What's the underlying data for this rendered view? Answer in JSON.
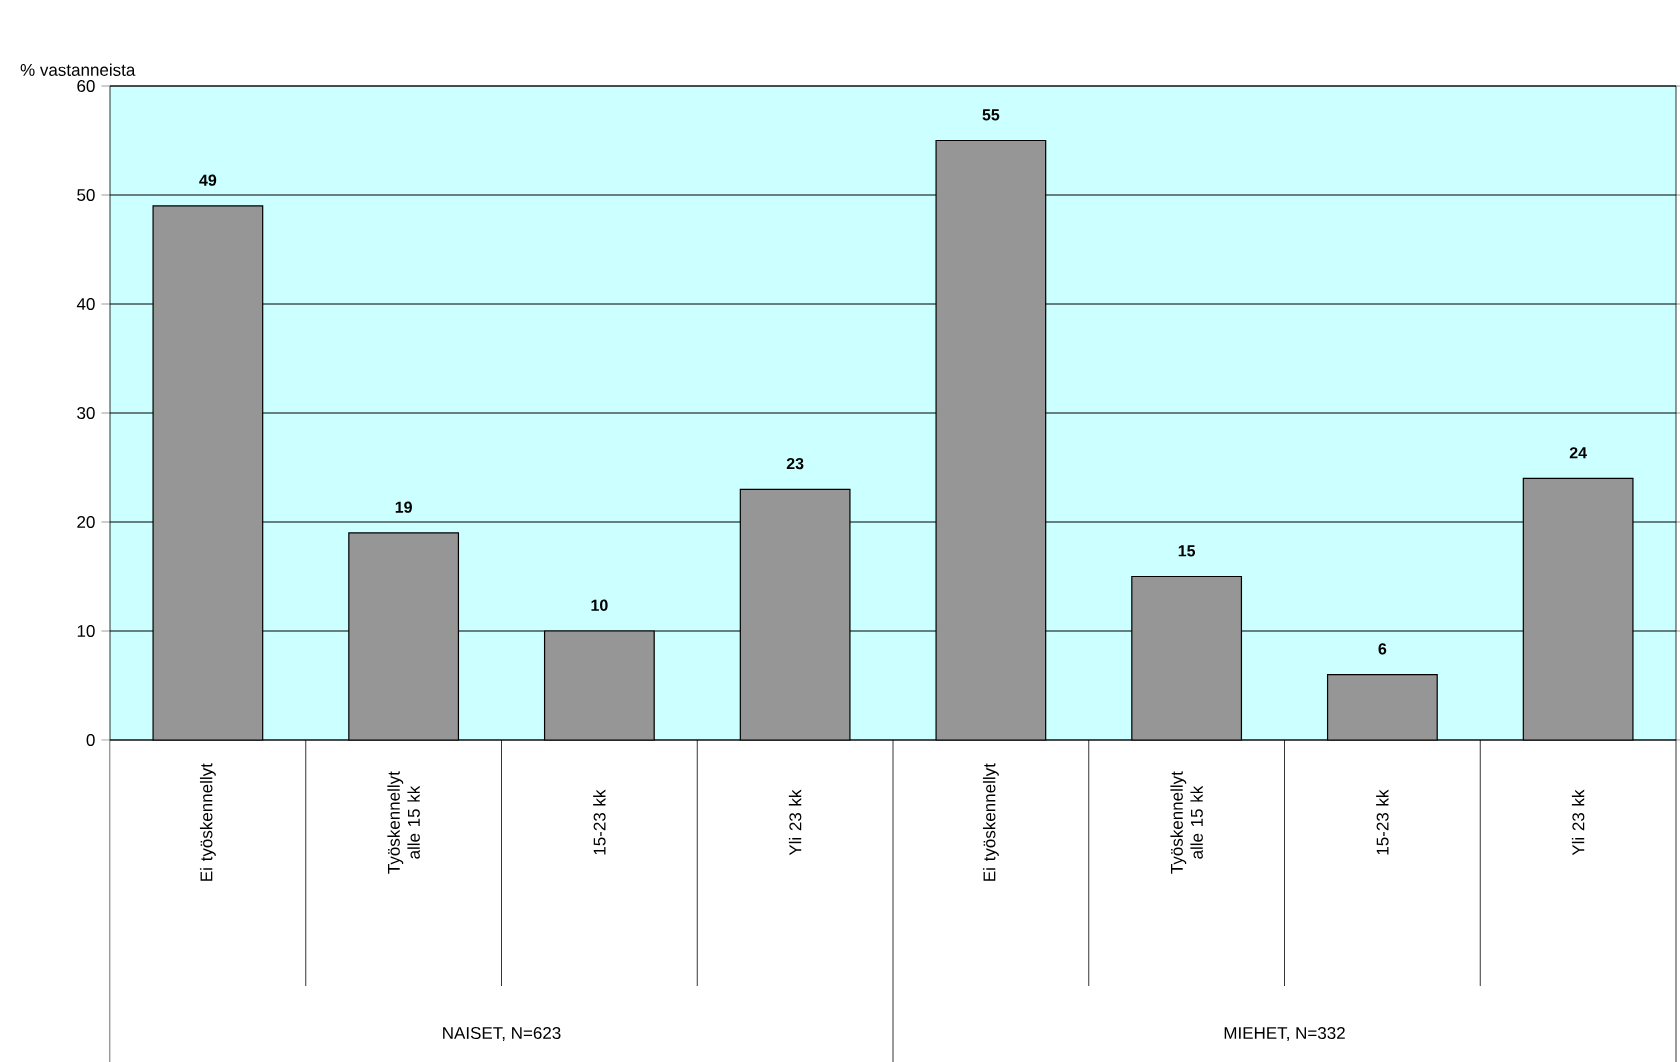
{
  "chart_data": {
    "type": "bar",
    "ylabel": "% vastanneista",
    "categories": [
      "Ei työskennellyt",
      "Työskennellyt alle 15 kk",
      "15-23 kk",
      "Yli 23 kk",
      "Ei työskennellyt",
      "Työskennellyt alle 15 kk",
      "15-23 kk",
      "Yli 23 kk"
    ],
    "values": [
      49,
      19,
      10,
      23,
      55,
      15,
      6,
      24
    ],
    "color": "#969696",
    "ylim": [
      0,
      60
    ],
    "yticks": [
      0,
      10,
      20,
      30,
      40,
      50,
      60
    ],
    "grid": "y",
    "data_labels": true,
    "annotations": [
      "NAISET, N=623",
      "MIEHET, N=332"
    ]
  }
}
